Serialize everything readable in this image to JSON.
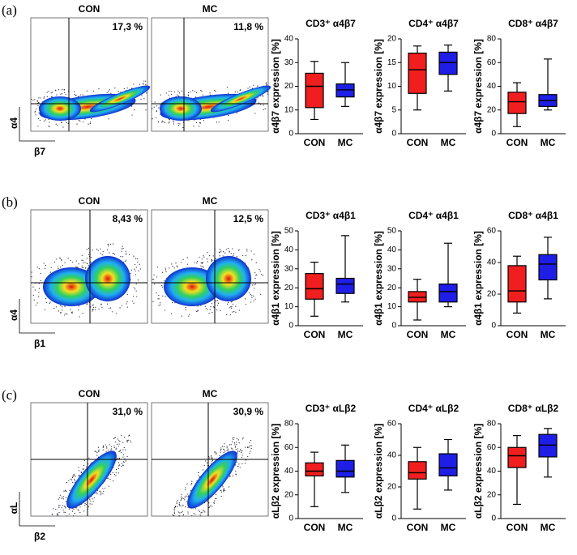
{
  "panel_labels": [
    "(a)",
    "(b)",
    "(c)"
  ],
  "chart_data": [
    {
      "type": "flow",
      "title": "CON",
      "annotation": "17,3 %",
      "xlabel": "β7",
      "ylabel": "α4"
    },
    {
      "type": "flow",
      "title": "MC",
      "annotation": "11,8 %"
    },
    {
      "type": "box",
      "title": "CD3⁺ α4β7",
      "ylabel": "α4β7 expression [%]",
      "categories": [
        "CON",
        "MC"
      ],
      "ylim": [
        0,
        40
      ],
      "yticks": [
        0,
        10,
        20,
        30,
        40
      ],
      "boxes": [
        {
          "min": 6,
          "q1": 11,
          "median": 20,
          "q3": 25.5,
          "max": 30.5,
          "color": "#f01e1e"
        },
        {
          "min": 11.5,
          "q1": 15.5,
          "median": 18.5,
          "q3": 21,
          "max": 30,
          "color": "#1e1ee6"
        }
      ]
    },
    {
      "type": "box",
      "title": "CD4⁺ α4β7",
      "ylabel": "α4β7 expression [%]",
      "categories": [
        "CON",
        "MC"
      ],
      "ylim": [
        0,
        20
      ],
      "yticks": [
        0,
        5,
        10,
        15,
        20
      ],
      "boxes": [
        {
          "min": 5,
          "q1": 8.5,
          "median": 13.5,
          "q3": 17,
          "max": 18.5,
          "color": "#f01e1e"
        },
        {
          "min": 9,
          "q1": 12.5,
          "median": 15,
          "q3": 17.2,
          "max": 18.7,
          "color": "#1e1ee6"
        }
      ]
    },
    {
      "type": "box",
      "title": "CD8⁺ α4β7",
      "ylabel": "α4β7 expression [%]",
      "categories": [
        "CON",
        "MC"
      ],
      "ylim": [
        0,
        80
      ],
      "yticks": [
        0,
        20,
        40,
        60,
        80
      ],
      "boxes": [
        {
          "min": 6,
          "q1": 17,
          "median": 27,
          "q3": 35,
          "max": 43,
          "color": "#f01e1e"
        },
        {
          "min": 20,
          "q1": 23,
          "median": 28,
          "q3": 33,
          "max": 63,
          "color": "#1e1ee6"
        }
      ]
    },
    {
      "type": "flow",
      "title": "CON",
      "annotation": "8,43 %",
      "xlabel": "β1",
      "ylabel": "α4"
    },
    {
      "type": "flow",
      "title": "MC",
      "annotation": "12,5 %"
    },
    {
      "type": "box",
      "title": "CD3⁺ α4β1",
      "ylabel": "α4β1 expression [%]",
      "categories": [
        "CON",
        "MC"
      ],
      "ylim": [
        0,
        50
      ],
      "yticks": [
        0,
        10,
        20,
        30,
        40,
        50
      ],
      "boxes": [
        {
          "min": 5,
          "q1": 14,
          "median": 19.5,
          "q3": 27.5,
          "max": 33.5,
          "color": "#f01e1e"
        },
        {
          "min": 12.5,
          "q1": 17,
          "median": 22,
          "q3": 25,
          "max": 47.5,
          "color": "#1e1ee6"
        }
      ]
    },
    {
      "type": "box",
      "title": "CD4⁺ α4β1",
      "ylabel": "α4β1 expression [%]",
      "categories": [
        "CON",
        "MC"
      ],
      "ylim": [
        0,
        50
      ],
      "yticks": [
        0,
        10,
        20,
        30,
        40,
        50
      ],
      "boxes": [
        {
          "min": 3,
          "q1": 12.5,
          "median": 15,
          "q3": 18,
          "max": 24.5,
          "color": "#f01e1e"
        },
        {
          "min": 10,
          "q1": 12.5,
          "median": 18,
          "q3": 22,
          "max": 43.5,
          "color": "#1e1ee6"
        }
      ]
    },
    {
      "type": "box",
      "title": "CD8⁺ α4β1",
      "ylabel": "α4β1 expression [%]",
      "categories": [
        "CON",
        "MC"
      ],
      "ylim": [
        0,
        60
      ],
      "yticks": [
        0,
        20,
        40,
        60
      ],
      "boxes": [
        {
          "min": 8,
          "q1": 15,
          "median": 22,
          "q3": 38,
          "max": 44,
          "color": "#f01e1e"
        },
        {
          "min": 17,
          "q1": 29,
          "median": 39,
          "q3": 45,
          "max": 56,
          "color": "#1e1ee6"
        }
      ]
    },
    {
      "type": "flow",
      "title": "CON",
      "annotation": "31,0 %",
      "xlabel": "β2",
      "ylabel": "αL"
    },
    {
      "type": "flow",
      "title": "MC",
      "annotation": "30,9 %"
    },
    {
      "type": "box",
      "title": "CD3⁺ αLβ2",
      "ylabel": "αLβ2 expression [%]",
      "categories": [
        "CON",
        "MC"
      ],
      "ylim": [
        0,
        80
      ],
      "yticks": [
        0,
        20,
        40,
        60,
        80
      ],
      "boxes": [
        {
          "min": 10,
          "q1": 36,
          "median": 40,
          "q3": 47,
          "max": 56,
          "color": "#f01e1e"
        },
        {
          "min": 22,
          "q1": 35,
          "median": 40,
          "q3": 49,
          "max": 62,
          "color": "#1e1ee6"
        }
      ]
    },
    {
      "type": "box",
      "title": "CD4⁺ αLβ2",
      "ylabel": "αLβ2 expression [%]",
      "categories": [
        "CON",
        "MC"
      ],
      "ylim": [
        0,
        60
      ],
      "yticks": [
        0,
        20,
        40,
        60
      ],
      "boxes": [
        {
          "min": 6,
          "q1": 25,
          "median": 29,
          "q3": 36,
          "max": 45,
          "color": "#f01e1e"
        },
        {
          "min": 18,
          "q1": 27,
          "median": 32,
          "q3": 41,
          "max": 50,
          "color": "#1e1ee6"
        }
      ]
    },
    {
      "type": "box",
      "title": "CD8⁺ αLβ2",
      "ylabel": "αLβ2 expression [%]",
      "categories": [
        "CON",
        "MC"
      ],
      "ylim": [
        0,
        80
      ],
      "yticks": [
        0,
        20,
        40,
        60,
        80
      ],
      "boxes": [
        {
          "min": 12,
          "q1": 43,
          "median": 53,
          "q3": 60,
          "max": 70,
          "color": "#f01e1e"
        },
        {
          "min": 35,
          "q1": 52,
          "median": 62,
          "q3": 71,
          "max": 76,
          "color": "#1e1ee6"
        }
      ]
    }
  ]
}
